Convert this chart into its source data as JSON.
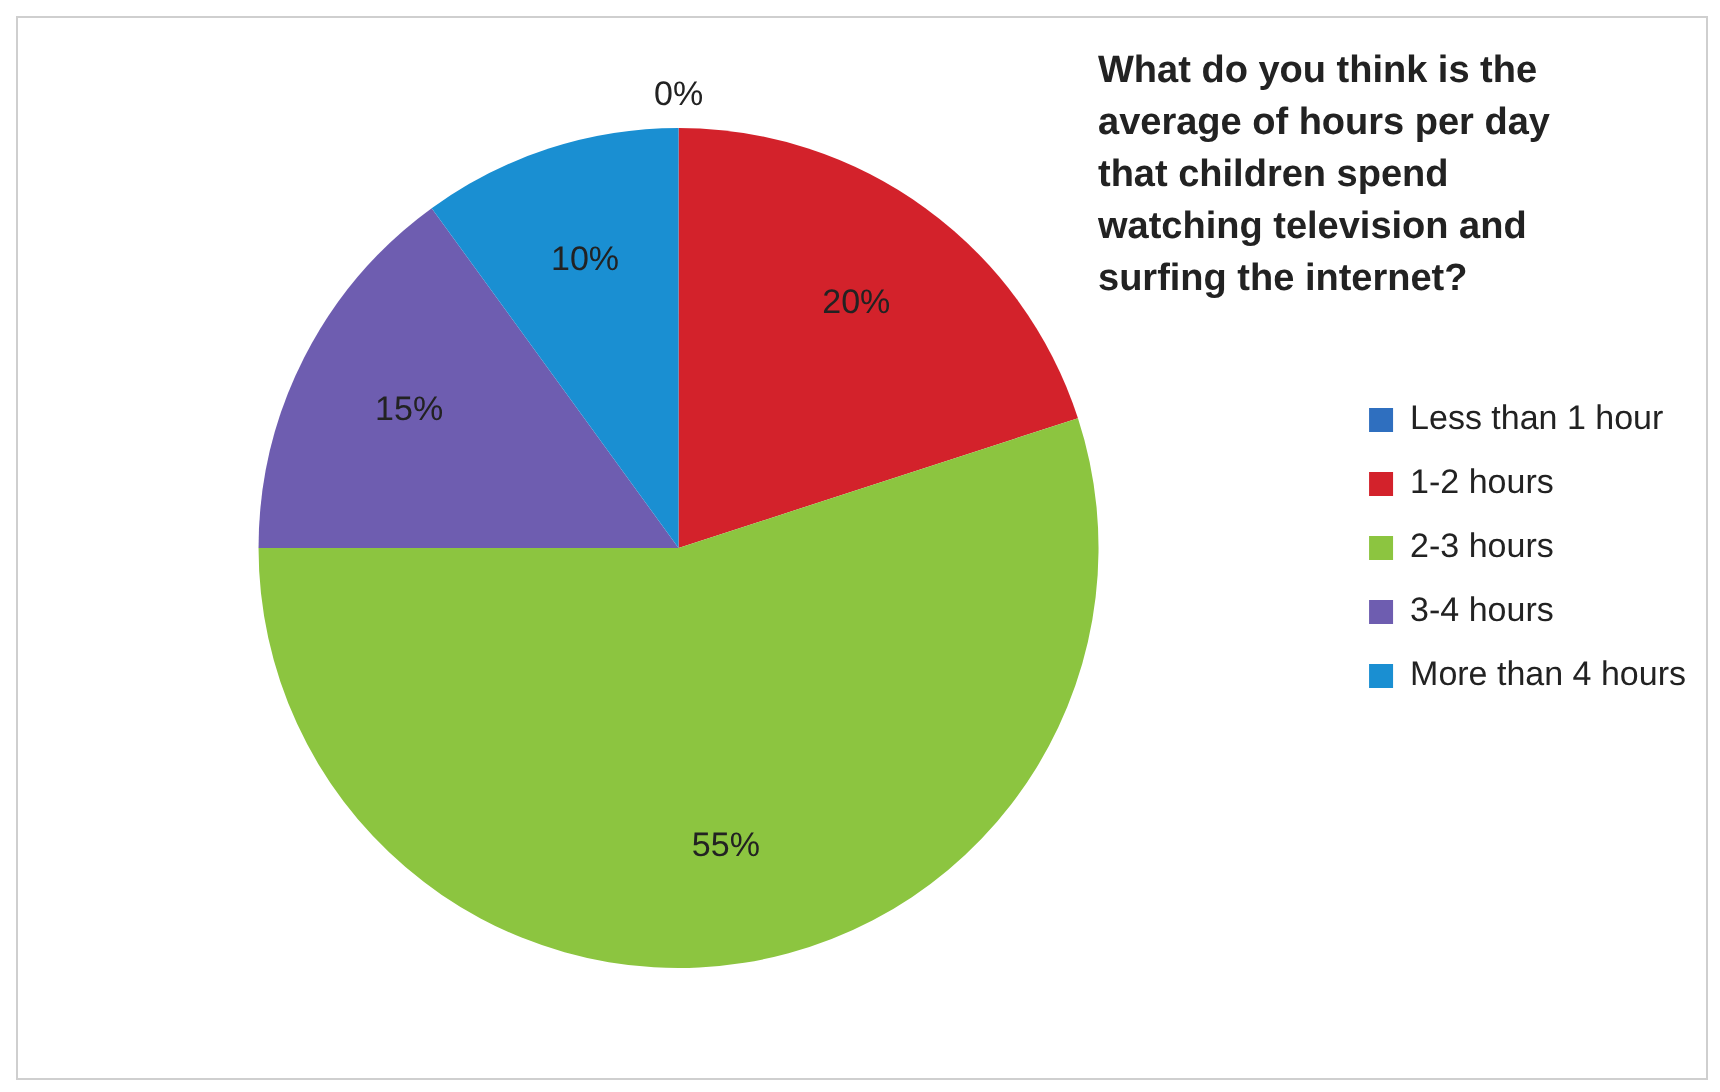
{
  "chart_data": {
    "type": "pie",
    "title": "What do you think is the average of hours per day that children spend watching television and surfing the internet?",
    "categories": [
      "Less than 1 hour",
      "1-2 hours",
      "2-3 hours",
      "3-4 hours",
      "More than 4 hours"
    ],
    "values": [
      0,
      20,
      55,
      15,
      10
    ],
    "colors": [
      "#2f6fbf",
      "#d3222b",
      "#8cc540",
      "#6e5db0",
      "#1a8fd2"
    ],
    "value_labels": [
      "0%",
      "20%",
      "55%",
      "15%",
      "10%"
    ],
    "legend": "right"
  }
}
